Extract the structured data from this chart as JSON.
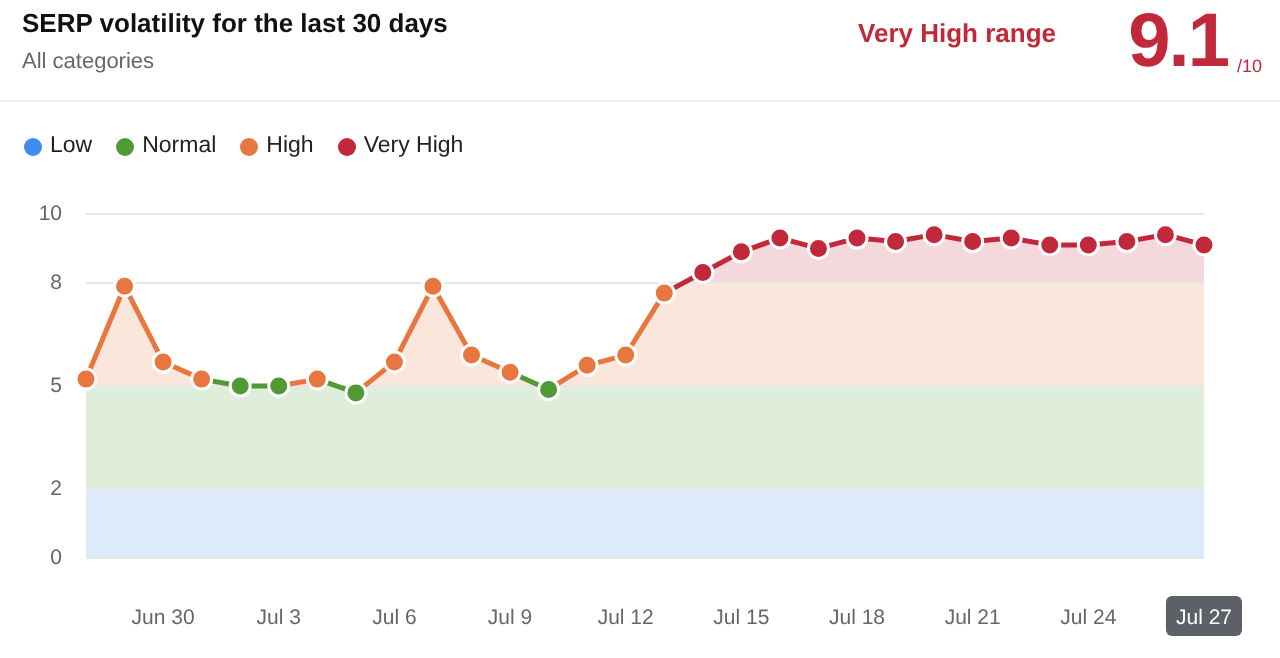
{
  "chart_data": {
    "type": "line",
    "title": "SERP volatility for the last 30 days",
    "subtitle": "All categories",
    "annotations": [
      "Very High range",
      "9.1",
      "/10"
    ],
    "categories": [
      null,
      null,
      "Jun 30",
      null,
      null,
      "Jul 3",
      null,
      null,
      "Jul 6",
      null,
      null,
      "Jul 9",
      null,
      null,
      "Jul 12",
      null,
      null,
      "Jul 15",
      null,
      null,
      "Jul 18",
      null,
      null,
      "Jul 21",
      null,
      null,
      "Jul 24",
      null,
      null,
      "Jul 27"
    ],
    "values": [
      5.2,
      7.9,
      5.7,
      5.2,
      5.0,
      5.0,
      5.2,
      4.8,
      5.7,
      7.9,
      5.9,
      5.4,
      4.9,
      5.6,
      5.9,
      7.7,
      8.3,
      8.9,
      9.3,
      9.0,
      9.3,
      9.2,
      9.4,
      9.2,
      9.3,
      9.1,
      9.1,
      9.2,
      9.4,
      9.1
    ],
    "colors": [
      "#e8773f",
      "#e8773f",
      "#e8773f",
      "#e8773f",
      "#4f9a35",
      "#4f9a35",
      "#e8773f",
      "#4f9a35",
      "#e8773f",
      "#e8773f",
      "#e8773f",
      "#e8773f",
      "#4f9a35",
      "#e8773f",
      "#e8773f",
      "#e8773f",
      "#c1283a",
      "#c1283a",
      "#c1283a",
      "#c1283a",
      "#c1283a",
      "#c1283a",
      "#c1283a",
      "#c1283a",
      "#c1283a",
      "#c1283a",
      "#c1283a",
      "#c1283a",
      "#c1283a",
      "#c1283a"
    ],
    "ylim": [
      0,
      10
    ],
    "yticks": [
      0,
      2,
      5,
      8,
      10
    ],
    "grid": "y",
    "marker": "circle",
    "legend": "top left",
    "bands": [
      {
        "axis": "y",
        "from": 0,
        "to": 2,
        "label": "Low",
        "color": "#3f8cf0"
      },
      {
        "axis": "y",
        "from": 2,
        "to": 5,
        "label": "Normal",
        "color": "#4f9a35"
      },
      {
        "axis": "y",
        "from": 5,
        "to": 8,
        "label": "High",
        "color": "#e8773f"
      },
      {
        "axis": "y",
        "from": 8,
        "to": 10,
        "label": "Very High",
        "color": "#c1283a"
      }
    ]
  }
}
